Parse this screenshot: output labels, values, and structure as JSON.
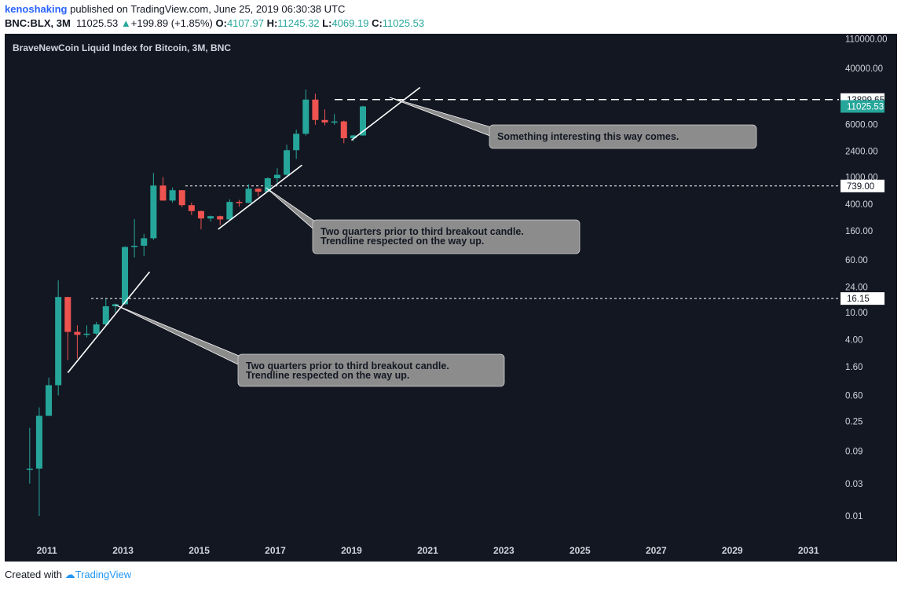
{
  "header": {
    "username": "kenoshaking",
    "published_text": "published on TradingView.com, June 25, 2019 06:30:38 UTC",
    "symbol": "BNC:BLX, 3M",
    "last_price": "11025.53",
    "change_arrow": "▲",
    "change": "+199.89 (+1.85%)",
    "open_label": "O:",
    "open": "4107.97",
    "high_label": "H:",
    "high": "11245.32",
    "low_label": "L:",
    "low": "4069.19",
    "close_label": "C:",
    "close": "11025.53"
  },
  "footer": {
    "created_with": "Created with",
    "brand": "TradingView"
  },
  "colors": {
    "background": "#131722",
    "up": "#26a69a",
    "down": "#ef5350",
    "annotation_bg": "#8c8c8c",
    "line": "#ffffff"
  },
  "chart_data": {
    "type": "candlestick",
    "title": "BraveNewCoin Liquid Index for Bitcoin, 3M, BNC",
    "y_scale": "log",
    "ylim": [
      0.005,
      130000
    ],
    "xlim": [
      2010.1,
      2031.8
    ],
    "x_ticks": [
      "2011",
      "2013",
      "2015",
      "2017",
      "2019",
      "2021",
      "2023",
      "2025",
      "2027",
      "2029",
      "2031"
    ],
    "y_ticks": [
      "110000.00",
      "40000.00",
      "15000.00",
      "6000.00",
      "2400.00",
      "1000.00",
      "400.00",
      "160.00",
      "60.00",
      "24.00",
      "10.00",
      "4.00",
      "1.60",
      "0.60",
      "0.25",
      "0.09",
      "0.03",
      "0.01"
    ],
    "price_labels": [
      "13899.65",
      "11025.53",
      "739.00",
      "16.15"
    ],
    "horizontal_levels": [
      13899.65,
      739.0,
      16.15
    ],
    "candles": [
      {
        "t": 2010.55,
        "o": 0.05,
        "h": 0.2,
        "l": 0.03,
        "c": 0.05
      },
      {
        "t": 2010.8,
        "o": 0.05,
        "h": 0.4,
        "l": 0.01,
        "c": 0.3
      },
      {
        "t": 2011.05,
        "o": 0.3,
        "h": 1.1,
        "l": 0.3,
        "c": 0.85
      },
      {
        "t": 2011.3,
        "o": 0.85,
        "h": 30,
        "l": 0.6,
        "c": 17
      },
      {
        "t": 2011.55,
        "o": 17,
        "h": 17,
        "l": 2.0,
        "c": 5.2
      },
      {
        "t": 2011.8,
        "o": 5.2,
        "h": 6.5,
        "l": 2.1,
        "c": 4.7
      },
      {
        "t": 2012.05,
        "o": 4.7,
        "h": 6.5,
        "l": 4.3,
        "c": 4.9
      },
      {
        "t": 2012.3,
        "o": 4.9,
        "h": 7.3,
        "l": 4.6,
        "c": 6.7
      },
      {
        "t": 2012.55,
        "o": 6.7,
        "h": 16,
        "l": 6.5,
        "c": 12.4
      },
      {
        "t": 2012.8,
        "o": 12.4,
        "h": 13.6,
        "l": 10,
        "c": 13.3
      },
      {
        "t": 2013.05,
        "o": 13.3,
        "h": 95,
        "l": 13,
        "c": 93
      },
      {
        "t": 2013.3,
        "o": 93,
        "h": 240,
        "l": 65,
        "c": 97
      },
      {
        "t": 2013.55,
        "o": 97,
        "h": 145,
        "l": 68,
        "c": 125
      },
      {
        "t": 2013.8,
        "o": 125,
        "h": 1150,
        "l": 118,
        "c": 750
      },
      {
        "t": 2014.05,
        "o": 750,
        "h": 1000,
        "l": 450,
        "c": 450
      },
      {
        "t": 2014.3,
        "o": 450,
        "h": 700,
        "l": 420,
        "c": 640
      },
      {
        "t": 2014.55,
        "o": 640,
        "h": 640,
        "l": 360,
        "c": 385
      },
      {
        "t": 2014.8,
        "o": 385,
        "h": 420,
        "l": 275,
        "c": 315
      },
      {
        "t": 2015.05,
        "o": 315,
        "h": 320,
        "l": 170,
        "c": 245
      },
      {
        "t": 2015.3,
        "o": 245,
        "h": 270,
        "l": 220,
        "c": 265
      },
      {
        "t": 2015.55,
        "o": 265,
        "h": 270,
        "l": 195,
        "c": 237
      },
      {
        "t": 2015.8,
        "o": 237,
        "h": 470,
        "l": 230,
        "c": 430
      },
      {
        "t": 2016.05,
        "o": 430,
        "h": 460,
        "l": 365,
        "c": 416
      },
      {
        "t": 2016.3,
        "o": 416,
        "h": 780,
        "l": 412,
        "c": 673
      },
      {
        "t": 2016.55,
        "o": 673,
        "h": 690,
        "l": 520,
        "c": 608
      },
      {
        "t": 2016.8,
        "o": 608,
        "h": 990,
        "l": 600,
        "c": 960
      },
      {
        "t": 2017.05,
        "o": 960,
        "h": 1350,
        "l": 750,
        "c": 1080
      },
      {
        "t": 2017.3,
        "o": 1080,
        "h": 3000,
        "l": 1050,
        "c": 2490
      },
      {
        "t": 2017.55,
        "o": 2490,
        "h": 5000,
        "l": 1850,
        "c": 4350
      },
      {
        "t": 2017.8,
        "o": 4350,
        "h": 19600,
        "l": 4100,
        "c": 13900
      },
      {
        "t": 2018.05,
        "o": 13900,
        "h": 17000,
        "l": 5900,
        "c": 6950
      },
      {
        "t": 2018.3,
        "o": 6950,
        "h": 9950,
        "l": 5800,
        "c": 6390
      },
      {
        "t": 2018.55,
        "o": 6390,
        "h": 8500,
        "l": 5900,
        "c": 6620
      },
      {
        "t": 2018.8,
        "o": 6620,
        "h": 6800,
        "l": 3150,
        "c": 3740
      },
      {
        "t": 2019.05,
        "o": 3740,
        "h": 4200,
        "l": 3350,
        "c": 4110
      },
      {
        "t": 2019.3,
        "o": 4107.97,
        "h": 11245.32,
        "l": 4069.19,
        "c": 11025.53
      }
    ],
    "trendlines": [
      {
        "from": [
          2011.55,
          1.3
        ],
        "to": [
          2013.7,
          40
        ]
      },
      {
        "from": [
          2015.5,
          170
        ],
        "to": [
          2017.7,
          1500
        ]
      },
      {
        "from": [
          2019.0,
          3500
        ],
        "to": [
          2020.8,
          21000
        ]
      }
    ],
    "annotations": [
      {
        "lines": [
          "Something interesting this way comes."
        ],
        "pointer": [
          2020.0,
          15000
        ]
      },
      {
        "lines": [
          "Two quarters prior to third breakout candle.",
          "Trendline respected on the way up."
        ],
        "pointer": [
          2016.75,
          700
        ]
      },
      {
        "lines": [
          "Two quarters prior to third breakout candle.",
          "Trendline respected on the way up."
        ],
        "pointer": [
          2012.8,
          13
        ]
      }
    ]
  }
}
